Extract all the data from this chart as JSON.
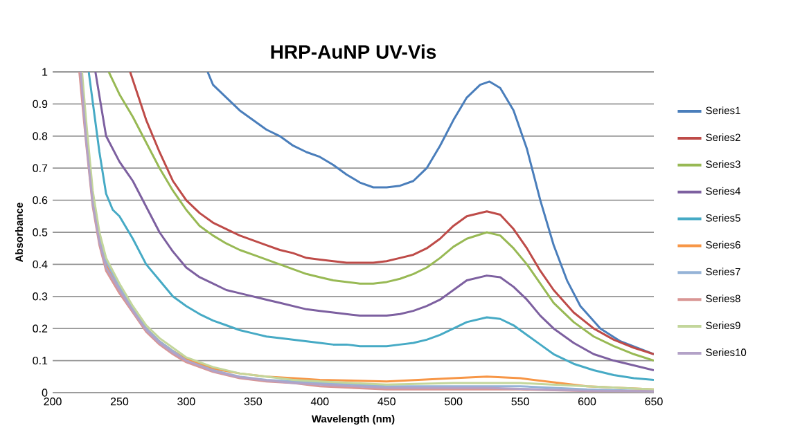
{
  "chart_data": {
    "type": "line",
    "title": "HRP-AuNP UV-Vis",
    "xlabel": "Wavelength (nm)",
    "ylabel": "Absorbance",
    "xlim": [
      200,
      650
    ],
    "ylim": [
      0,
      1
    ],
    "xticks": [
      200,
      250,
      300,
      350,
      400,
      450,
      500,
      550,
      600,
      650
    ],
    "yticks": [
      0,
      0.1,
      0.2,
      0.3,
      0.4,
      0.5,
      0.6,
      0.7,
      0.8,
      0.9,
      1
    ],
    "grid": "y",
    "legend": "right",
    "marker": "none",
    "line_style": "solid",
    "series": [
      {
        "name": "Series1",
        "color": "#4a7ebb",
        "x": [
          316,
          320,
          330,
          340,
          350,
          360,
          370,
          380,
          390,
          400,
          410,
          420,
          430,
          440,
          450,
          460,
          470,
          480,
          490,
          500,
          510,
          520,
          527,
          535,
          545,
          555,
          565,
          575,
          585,
          595,
          610,
          625,
          650
        ],
        "values": [
          1,
          0.96,
          0.92,
          0.88,
          0.85,
          0.82,
          0.8,
          0.77,
          0.75,
          0.735,
          0.71,
          0.68,
          0.655,
          0.64,
          0.64,
          0.645,
          0.66,
          0.7,
          0.77,
          0.85,
          0.92,
          0.96,
          0.97,
          0.95,
          0.88,
          0.76,
          0.6,
          0.46,
          0.35,
          0.27,
          0.2,
          0.16,
          0.12
        ]
      },
      {
        "name": "Series2",
        "color": "#be4b48",
        "x": [
          258,
          270,
          280,
          290,
          300,
          310,
          320,
          330,
          340,
          350,
          360,
          370,
          380,
          390,
          400,
          410,
          420,
          430,
          440,
          450,
          460,
          470,
          480,
          490,
          500,
          510,
          525,
          535,
          545,
          555,
          565,
          575,
          590,
          605,
          620,
          635,
          650
        ],
        "values": [
          1,
          0.85,
          0.75,
          0.66,
          0.6,
          0.56,
          0.53,
          0.51,
          0.49,
          0.475,
          0.46,
          0.445,
          0.435,
          0.42,
          0.415,
          0.41,
          0.405,
          0.405,
          0.405,
          0.41,
          0.42,
          0.43,
          0.45,
          0.48,
          0.52,
          0.55,
          0.565,
          0.555,
          0.51,
          0.45,
          0.38,
          0.32,
          0.25,
          0.2,
          0.165,
          0.14,
          0.12
        ]
      },
      {
        "name": "Series3",
        "color": "#98b954",
        "x": [
          242,
          250,
          260,
          270,
          280,
          290,
          300,
          310,
          320,
          330,
          340,
          350,
          360,
          370,
          380,
          390,
          400,
          410,
          420,
          430,
          440,
          450,
          460,
          470,
          480,
          490,
          500,
          510,
          525,
          535,
          545,
          555,
          565,
          575,
          590,
          605,
          620,
          635,
          650
        ],
        "values": [
          1,
          0.93,
          0.86,
          0.78,
          0.7,
          0.63,
          0.57,
          0.52,
          0.49,
          0.465,
          0.445,
          0.43,
          0.415,
          0.4,
          0.385,
          0.37,
          0.36,
          0.35,
          0.345,
          0.34,
          0.34,
          0.345,
          0.355,
          0.37,
          0.39,
          0.42,
          0.455,
          0.48,
          0.5,
          0.49,
          0.45,
          0.4,
          0.34,
          0.28,
          0.22,
          0.175,
          0.145,
          0.12,
          0.1
        ]
      },
      {
        "name": "Series4",
        "color": "#7d60a0",
        "x": [
          232,
          240,
          250,
          260,
          270,
          280,
          290,
          300,
          310,
          320,
          330,
          340,
          350,
          360,
          370,
          380,
          390,
          400,
          410,
          420,
          430,
          440,
          450,
          460,
          470,
          480,
          490,
          500,
          510,
          525,
          535,
          545,
          555,
          565,
          575,
          590,
          605,
          620,
          635,
          650
        ],
        "values": [
          1,
          0.8,
          0.72,
          0.66,
          0.58,
          0.5,
          0.44,
          0.39,
          0.36,
          0.34,
          0.32,
          0.31,
          0.3,
          0.29,
          0.28,
          0.27,
          0.26,
          0.255,
          0.25,
          0.245,
          0.24,
          0.24,
          0.24,
          0.245,
          0.255,
          0.27,
          0.29,
          0.32,
          0.35,
          0.365,
          0.36,
          0.33,
          0.29,
          0.24,
          0.2,
          0.155,
          0.12,
          0.1,
          0.085,
          0.07
        ]
      },
      {
        "name": "Series5",
        "color": "#46aac5",
        "x": [
          227,
          235,
          240,
          245,
          250,
          260,
          270,
          280,
          290,
          300,
          310,
          320,
          330,
          340,
          350,
          360,
          370,
          380,
          390,
          400,
          410,
          420,
          430,
          440,
          450,
          460,
          470,
          480,
          490,
          500,
          510,
          525,
          535,
          545,
          555,
          565,
          575,
          590,
          605,
          620,
          635,
          650
        ],
        "values": [
          1,
          0.75,
          0.62,
          0.57,
          0.55,
          0.48,
          0.4,
          0.35,
          0.3,
          0.27,
          0.245,
          0.225,
          0.21,
          0.195,
          0.185,
          0.175,
          0.17,
          0.165,
          0.16,
          0.155,
          0.15,
          0.15,
          0.145,
          0.145,
          0.145,
          0.15,
          0.155,
          0.165,
          0.18,
          0.2,
          0.22,
          0.235,
          0.23,
          0.21,
          0.18,
          0.15,
          0.12,
          0.09,
          0.07,
          0.055,
          0.045,
          0.04
        ]
      },
      {
        "name": "Series6",
        "color": "#f79646",
        "x": [
          221,
          225,
          230,
          235,
          240,
          250,
          260,
          270,
          280,
          290,
          300,
          320,
          340,
          360,
          380,
          400,
          450,
          500,
          525,
          550,
          600,
          650
        ],
        "values": [
          1,
          0.8,
          0.6,
          0.48,
          0.4,
          0.32,
          0.26,
          0.2,
          0.16,
          0.13,
          0.105,
          0.075,
          0.06,
          0.05,
          0.045,
          0.04,
          0.035,
          0.045,
          0.05,
          0.045,
          0.02,
          0.01
        ]
      },
      {
        "name": "Series7",
        "color": "#95b3d7",
        "x": [
          221,
          225,
          230,
          235,
          240,
          250,
          260,
          270,
          280,
          290,
          300,
          320,
          340,
          360,
          380,
          400,
          450,
          500,
          525,
          550,
          600,
          650
        ],
        "values": [
          1,
          0.8,
          0.6,
          0.49,
          0.41,
          0.33,
          0.26,
          0.2,
          0.16,
          0.13,
          0.1,
          0.07,
          0.05,
          0.04,
          0.035,
          0.03,
          0.02,
          0.02,
          0.02,
          0.02,
          0.01,
          0.005
        ]
      },
      {
        "name": "Series8",
        "color": "#d99694",
        "x": [
          220,
          225,
          230,
          235,
          240,
          250,
          260,
          270,
          280,
          290,
          300,
          320,
          340,
          360,
          380,
          400,
          450,
          500,
          525,
          550,
          600,
          650
        ],
        "values": [
          1,
          0.78,
          0.58,
          0.46,
          0.38,
          0.31,
          0.25,
          0.19,
          0.15,
          0.12,
          0.095,
          0.065,
          0.045,
          0.035,
          0.03,
          0.02,
          0.01,
          0.01,
          0.01,
          0.01,
          0.005,
          0.005
        ]
      },
      {
        "name": "Series9",
        "color": "#c3d69b",
        "x": [
          222,
          225,
          230,
          235,
          240,
          250,
          260,
          270,
          280,
          290,
          300,
          320,
          340,
          360,
          380,
          400,
          450,
          500,
          525,
          550,
          600,
          650
        ],
        "values": [
          1,
          0.85,
          0.63,
          0.5,
          0.42,
          0.34,
          0.27,
          0.21,
          0.17,
          0.14,
          0.11,
          0.08,
          0.06,
          0.05,
          0.04,
          0.035,
          0.025,
          0.03,
          0.03,
          0.03,
          0.02,
          0.01
        ]
      },
      {
        "name": "Series10",
        "color": "#b3a2c7",
        "x": [
          221,
          225,
          230,
          235,
          240,
          250,
          260,
          270,
          280,
          290,
          300,
          320,
          340,
          360,
          380,
          400,
          450,
          500,
          525,
          550,
          600,
          650
        ],
        "values": [
          1,
          0.79,
          0.59,
          0.47,
          0.39,
          0.32,
          0.255,
          0.195,
          0.155,
          0.125,
          0.1,
          0.068,
          0.048,
          0.038,
          0.03,
          0.025,
          0.015,
          0.015,
          0.015,
          0.012,
          0.006,
          0.004
        ]
      }
    ]
  }
}
